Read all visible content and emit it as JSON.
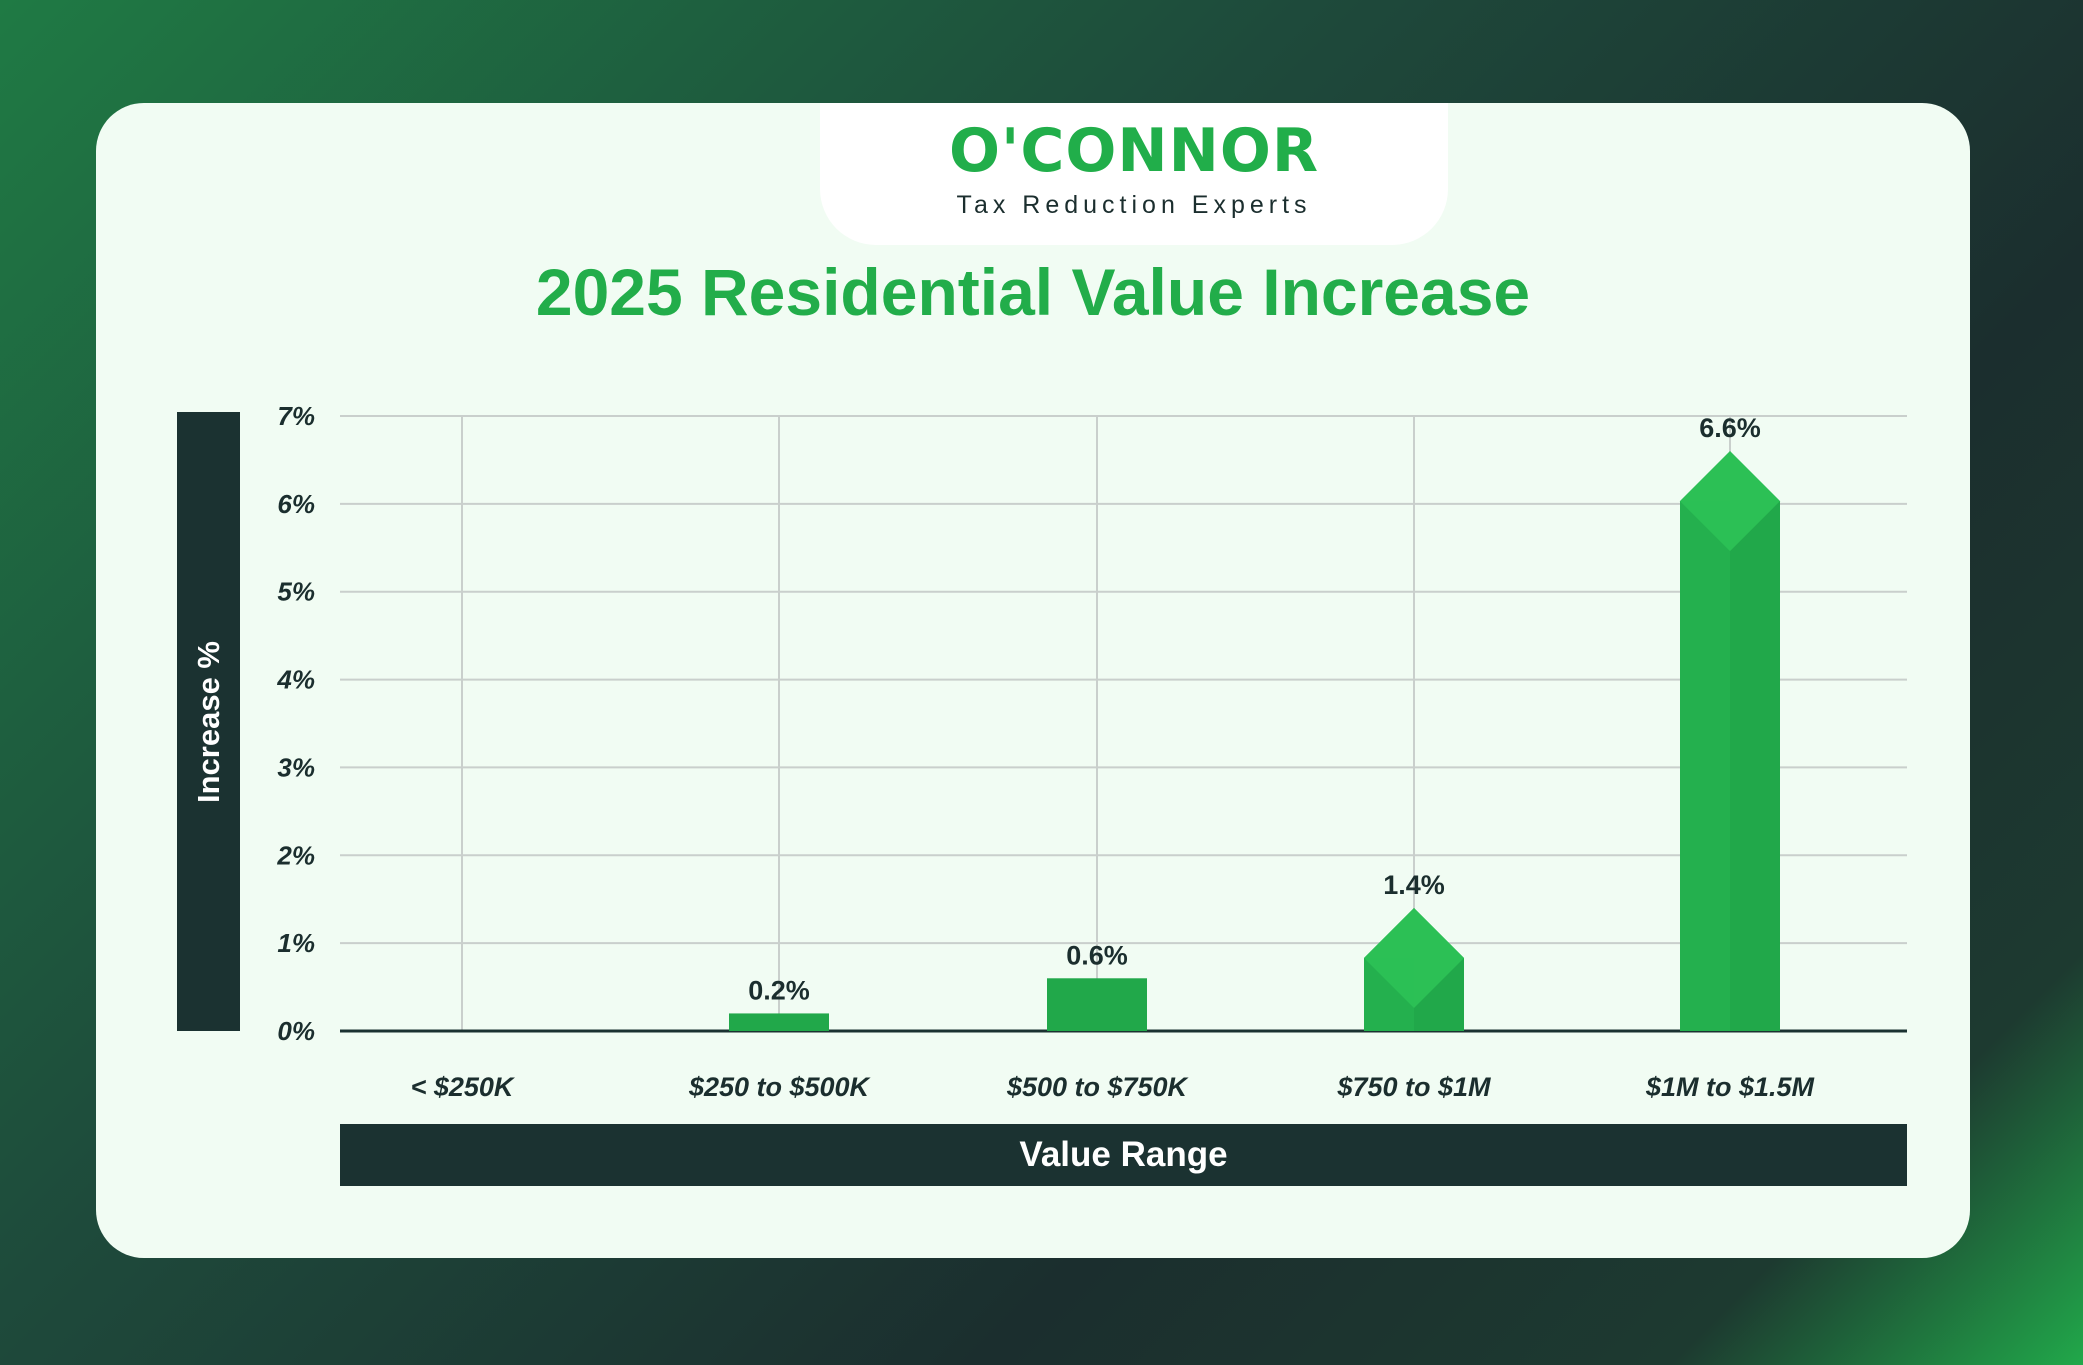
{
  "logo": {
    "name": "O'CONNOR",
    "tagline": "Tax Reduction Experts"
  },
  "colors": {
    "accent": "#22ad4a",
    "bar_light": "#2cc055",
    "bar_dark": "#21a84a",
    "dark_band": "#1b3231",
    "card_bg": "#f1fcf3"
  },
  "chart_data": {
    "type": "bar",
    "title": "2025 Residential Value Increase",
    "xlabel": "Value Range",
    "ylabel": "Increase %",
    "categories": [
      "< $250K",
      "$250 to $500K",
      "$500 to $750K",
      "$750 to $1M",
      "$1M to $1.5M"
    ],
    "values": [
      0,
      0.2,
      0.6,
      1.4,
      6.6
    ],
    "data_labels": [
      "",
      "0.2%",
      "0.6%",
      "1.4%",
      "6.6%"
    ],
    "bar_shape": [
      "flat",
      "flat",
      "flat",
      "pointed",
      "pointed"
    ],
    "yticks": [
      "0%",
      "1%",
      "2%",
      "3%",
      "4%",
      "5%",
      "6%",
      "7%"
    ],
    "ylim": [
      0,
      7
    ],
    "grid": true,
    "legend": "none"
  }
}
